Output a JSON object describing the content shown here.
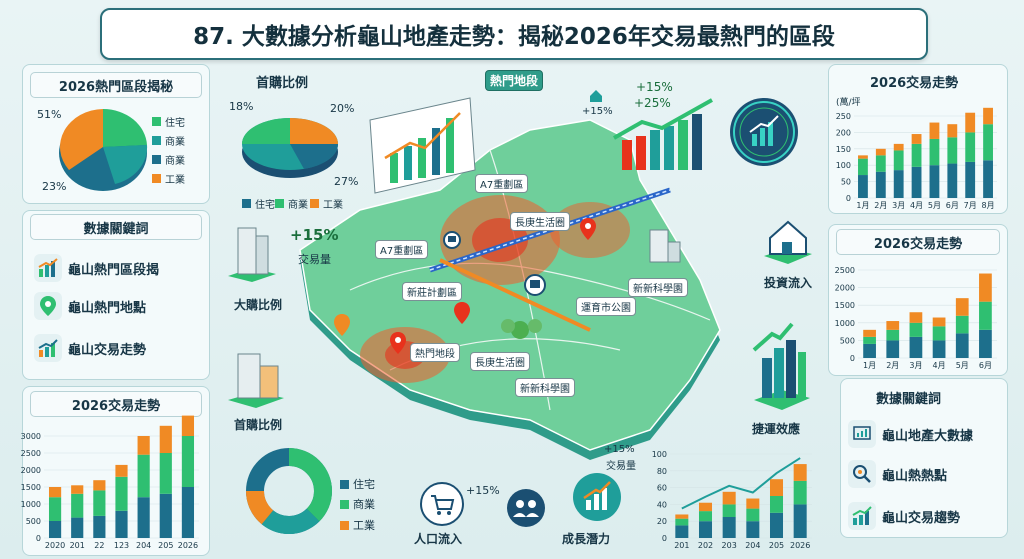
{
  "title": "87. 大數據分析龜山地產走勢：揭秘2026年交易最熱門的區段",
  "colors": {
    "teal": "#1f9e9a",
    "green": "#2fbf71",
    "orange": "#f08a24",
    "blue": "#1d6f8c",
    "navy": "#1b4f72"
  },
  "left": {
    "hot_header": "2026熱門區段揭秘",
    "pie_pct_top": "51%",
    "pie_pct_bottom": "23%",
    "pie_legend": [
      "住宅",
      "商業",
      "商業",
      "工業"
    ],
    "keywords_header": "數據關鍵詞",
    "keywords": [
      "龜山熱門區段揭",
      "龜山熱門地點",
      "龜山交易走勢"
    ],
    "trend_header": "2026交易走勢",
    "trend_yticks": [
      "3000",
      "2500",
      "2000",
      "1500",
      "1000",
      "500",
      "0"
    ],
    "trend_xticks": [
      "2020",
      "201",
      "22",
      "123",
      "204",
      "205",
      "2026"
    ]
  },
  "center": {
    "first_buy_title": "首購比例",
    "first_buy_pct": [
      "18%",
      "20%",
      "27%"
    ],
    "first_buy_legend": [
      "住宅",
      "商業",
      "工業"
    ],
    "hot_title": "熱門地段",
    "growth1": "+15%",
    "growth2": "+25%",
    "growth3": "+15%",
    "trade_growth": "+15%",
    "trade_volume": "交易量",
    "big_buy": "大購比例",
    "first_buy_2": "首購比例",
    "map_labels": [
      "A7重劃區",
      "長庚生活圈",
      "A7重劃區",
      "新莊計劃區",
      "新新科學園",
      "運育市公園",
      "熱門地段",
      "長庚生活圈",
      "新新科學園"
    ],
    "donut_legend": [
      "住宅",
      "商業",
      "工業"
    ],
    "bottom_growth": "+15%",
    "bottom_growth2": "+15%",
    "bottom_volume": "交易量",
    "population": "人口流入",
    "potential": "成長潛力",
    "invest": "投資流入",
    "transit": "捷運效應",
    "bottom_chart_yticks": [
      "100",
      "80",
      "60",
      "40",
      "20",
      "0"
    ],
    "bottom_chart_xticks": [
      "201",
      "202",
      "203",
      "204",
      "205",
      "2026"
    ]
  },
  "right": {
    "trend_title": "2026交易走勢",
    "trend_unit": "(萬/坪",
    "trend_yticks": [
      "250",
      "200",
      "150",
      "100",
      "50",
      "0"
    ],
    "trend_xticks": [
      "1月",
      "2月",
      "3月",
      "4月",
      "5月",
      "6月",
      "7月",
      "8月"
    ],
    "trend2_header": "2026交易走勢",
    "trend2_yticks": [
      "2500",
      "2000",
      "1500",
      "1000",
      "500",
      "0"
    ],
    "trend2_xticks": [
      "1月",
      "2月",
      "3月",
      "4月",
      "5月",
      "6月"
    ],
    "keywords_header": "數據關鍵詞",
    "keywords": [
      "龜山地產大數據",
      "龜山熱熱點",
      "龜山交易趨勢"
    ]
  },
  "chart_data": [
    {
      "type": "bar",
      "title": "2026交易走勢",
      "categories": [
        "2020",
        "201",
        "22",
        "123",
        "204",
        "205",
        "2026"
      ],
      "series": [
        {
          "values": [
            500,
            600,
            650,
            800,
            1200,
            1300,
            1500
          ]
        },
        {
          "values": [
            700,
            700,
            750,
            1000,
            1250,
            1200,
            1500
          ]
        },
        {
          "values": [
            300,
            250,
            300,
            350,
            550,
            800,
            600
          ]
        }
      ],
      "ylim": [
        0,
        3000
      ]
    },
    {
      "type": "bar",
      "title": "2026交易走勢",
      "categories": [
        "1月",
        "2月",
        "3月",
        "4月",
        "5月",
        "6月",
        "7月",
        "8月"
      ],
      "series": [
        {
          "values": [
            70,
            80,
            85,
            95,
            100,
            105,
            110,
            115
          ]
        },
        {
          "values": [
            50,
            50,
            60,
            70,
            80,
            80,
            90,
            110
          ]
        },
        {
          "values": [
            10,
            20,
            20,
            30,
            50,
            40,
            60,
            50
          ]
        }
      ],
      "ylim": [
        0,
        250
      ]
    },
    {
      "type": "bar",
      "title": "2026交易走勢",
      "categories": [
        "1月",
        "2月",
        "3月",
        "4月",
        "5月",
        "6月"
      ],
      "series": [
        {
          "values": [
            400,
            500,
            600,
            500,
            700,
            800
          ]
        },
        {
          "values": [
            200,
            300,
            400,
            400,
            500,
            800
          ]
        },
        {
          "values": [
            200,
            250,
            300,
            250,
            500,
            800
          ]
        }
      ],
      "ylim": [
        0,
        2500
      ]
    },
    {
      "type": "bar",
      "categories": [
        "201",
        "202",
        "203",
        "204",
        "205",
        "2026"
      ],
      "series": [
        {
          "values": [
            15,
            20,
            25,
            20,
            30,
            40
          ]
        },
        {
          "values": [
            8,
            12,
            15,
            15,
            20,
            28
          ]
        },
        {
          "values": [
            5,
            10,
            15,
            12,
            20,
            20
          ]
        }
      ],
      "ylim": [
        0,
        100
      ]
    }
  ]
}
